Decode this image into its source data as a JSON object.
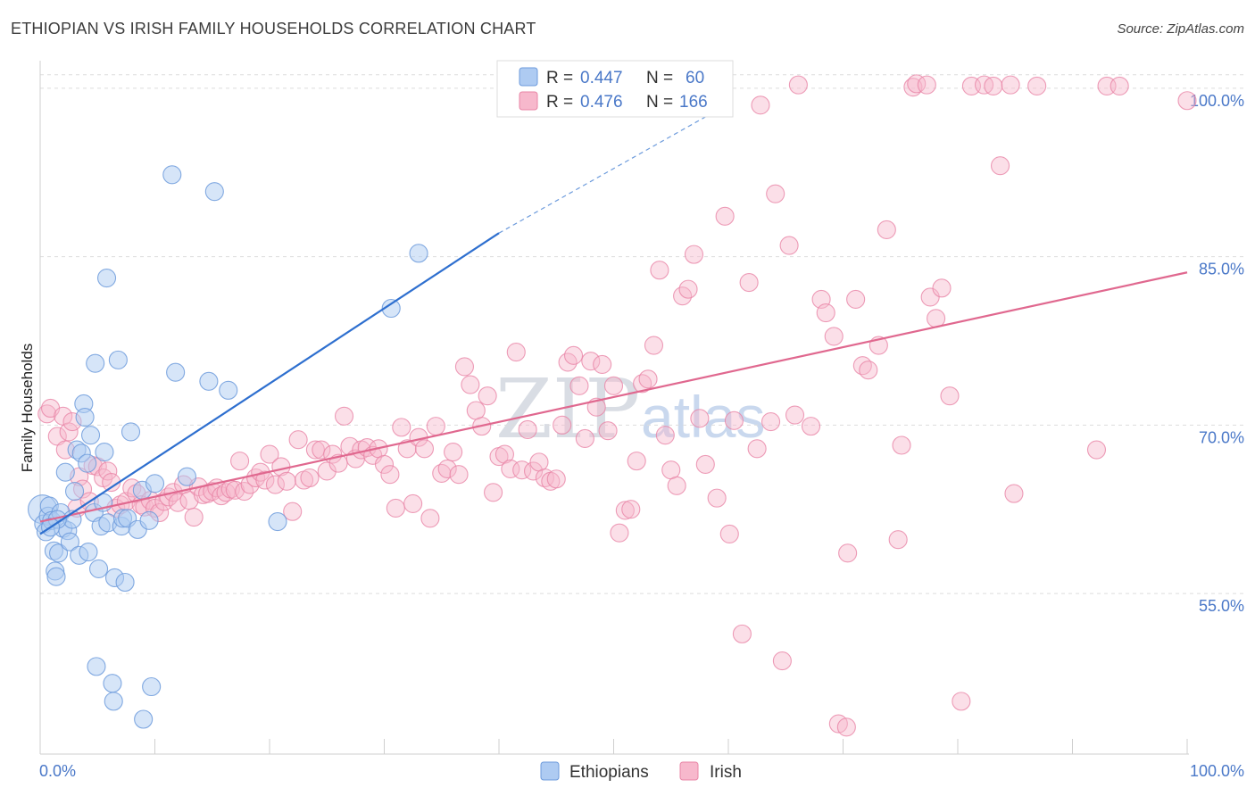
{
  "title": "ETHIOPIAN VS IRISH FAMILY HOUSEHOLDS CORRELATION CHART",
  "source": "Source: ZipAtlas.com",
  "watermark": {
    "zip": "ZIP",
    "atlas": "atlas"
  },
  "colors": {
    "ethiopians_fill": "#aecbf2",
    "ethiopians_stroke": "#6d9bdc",
    "ethiopians_line": "#2e6fcf",
    "irish_fill": "#f7b8cc",
    "irish_stroke": "#e885a6",
    "irish_line": "#e0688f",
    "tick_label": "#4a78c8",
    "grid": "#dddddd"
  },
  "legend": {
    "rows": [
      {
        "r_label": "R = ",
        "r_value": "0.447",
        "n_label": "N = ",
        "n_value": "60"
      },
      {
        "r_label": "R = ",
        "r_value": "0.476",
        "n_label": "N = ",
        "n_value": "166"
      }
    ]
  },
  "bottom_legend": [
    "Ethiopians",
    "Irish"
  ],
  "chart_data": {
    "type": "scatter",
    "title": "ETHIOPIAN VS IRISH FAMILY HOUSEHOLDS CORRELATION CHART",
    "xlabel": "",
    "ylabel": "Family Households",
    "xlim": [
      0,
      100
    ],
    "ylim": [
      40.7,
      101.9
    ],
    "x_tick_labels": [
      "0.0%",
      "100.0%"
    ],
    "y_ticks": [
      55,
      70,
      85,
      100
    ],
    "y_tick_labels": [
      "55.0%",
      "70.0%",
      "85.0%",
      "100.0%"
    ],
    "grid": true,
    "legend_position": "top-center",
    "series": [
      {
        "name": "Ethiopians",
        "R": 0.447,
        "N": 60,
        "trend": {
          "x0": 0,
          "y0": 60.3,
          "x1": 40,
          "y1": 87.1,
          "dash_to_x": 60,
          "dash_to_y": 98.6
        },
        "points": [
          [
            0.2,
            62.5
          ],
          [
            0.3,
            61.2
          ],
          [
            0.5,
            60.5
          ],
          [
            0.7,
            61.9
          ],
          [
            0.8,
            62.8
          ],
          [
            1.0,
            61.5
          ],
          [
            1.2,
            58.8
          ],
          [
            1.3,
            57.0
          ],
          [
            1.4,
            56.5
          ],
          [
            1.6,
            58.6
          ],
          [
            1.8,
            62.2
          ],
          [
            2.0,
            60.8
          ],
          [
            2.2,
            65.8
          ],
          [
            2.4,
            60.6
          ],
          [
            2.6,
            59.6
          ],
          [
            2.8,
            61.6
          ],
          [
            3.0,
            64.1
          ],
          [
            3.2,
            67.8
          ],
          [
            3.4,
            58.4
          ],
          [
            3.6,
            67.5
          ],
          [
            3.8,
            71.9
          ],
          [
            3.9,
            70.7
          ],
          [
            4.1,
            66.6
          ],
          [
            4.2,
            58.7
          ],
          [
            4.4,
            69.1
          ],
          [
            4.7,
            62.2
          ],
          [
            4.9,
            48.5
          ],
          [
            4.8,
            75.5
          ],
          [
            5.1,
            57.2
          ],
          [
            5.3,
            61.0
          ],
          [
            5.5,
            63.1
          ],
          [
            5.6,
            67.6
          ],
          [
            5.8,
            83.1
          ],
          [
            5.9,
            61.3
          ],
          [
            6.3,
            47.0
          ],
          [
            6.4,
            45.4
          ],
          [
            6.5,
            56.4
          ],
          [
            6.8,
            75.8
          ],
          [
            7.1,
            61.0
          ],
          [
            7.2,
            61.7
          ],
          [
            7.4,
            56.0
          ],
          [
            7.6,
            61.7
          ],
          [
            7.9,
            69.4
          ],
          [
            8.5,
            60.7
          ],
          [
            8.9,
            64.2
          ],
          [
            9.0,
            43.8
          ],
          [
            9.5,
            61.5
          ],
          [
            9.7,
            46.7
          ],
          [
            10.0,
            64.8
          ],
          [
            11.5,
            92.3
          ],
          [
            11.8,
            74.7
          ],
          [
            12.8,
            65.4
          ],
          [
            14.7,
            73.9
          ],
          [
            15.2,
            90.8
          ],
          [
            16.4,
            73.1
          ],
          [
            20.7,
            61.4
          ],
          [
            30.6,
            80.4
          ],
          [
            33.0,
            85.3
          ],
          [
            1.5,
            61.6
          ],
          [
            0.9,
            60.9
          ]
        ]
      },
      {
        "name": "Irish",
        "R": 0.476,
        "N": 166,
        "trend": {
          "x0": 0,
          "y0": 61.4,
          "x1": 100,
          "y1": 83.6
        },
        "points": [
          [
            0.6,
            71.0
          ],
          [
            0.9,
            71.5
          ],
          [
            1.5,
            69.0
          ],
          [
            2.0,
            70.8
          ],
          [
            2.2,
            67.8
          ],
          [
            2.5,
            69.4
          ],
          [
            2.8,
            70.3
          ],
          [
            3.2,
            62.6
          ],
          [
            3.4,
            65.4
          ],
          [
            3.7,
            64.3
          ],
          [
            4.3,
            63.2
          ],
          [
            4.6,
            66.4
          ],
          [
            5.0,
            66.3
          ],
          [
            5.5,
            65.3
          ],
          [
            5.9,
            65.9
          ],
          [
            6.2,
            64.9
          ],
          [
            6.6,
            62.6
          ],
          [
            7.0,
            62.9
          ],
          [
            7.5,
            63.2
          ],
          [
            8.0,
            64.4
          ],
          [
            8.4,
            63.9
          ],
          [
            8.8,
            62.9
          ],
          [
            9.1,
            62.7
          ],
          [
            9.6,
            63.3
          ],
          [
            10.0,
            62.6
          ],
          [
            10.4,
            62.2
          ],
          [
            10.8,
            63.2
          ],
          [
            11.2,
            63.6
          ],
          [
            11.6,
            64.0
          ],
          [
            12.0,
            63.1
          ],
          [
            12.5,
            64.7
          ],
          [
            13.0,
            63.3
          ],
          [
            13.4,
            61.8
          ],
          [
            13.8,
            64.5
          ],
          [
            14.2,
            63.8
          ],
          [
            14.6,
            63.9
          ],
          [
            15.0,
            64.1
          ],
          [
            15.4,
            64.4
          ],
          [
            15.8,
            63.7
          ],
          [
            16.2,
            64.0
          ],
          [
            16.6,
            64.3
          ],
          [
            17.0,
            64.2
          ],
          [
            17.4,
            66.8
          ],
          [
            17.8,
            64.1
          ],
          [
            18.3,
            64.7
          ],
          [
            18.8,
            65.3
          ],
          [
            19.2,
            65.8
          ],
          [
            19.6,
            65.1
          ],
          [
            20.0,
            67.4
          ],
          [
            20.5,
            64.7
          ],
          [
            21.0,
            66.3
          ],
          [
            21.5,
            65.0
          ],
          [
            22.0,
            62.3
          ],
          [
            22.5,
            68.7
          ],
          [
            23.0,
            65.1
          ],
          [
            23.5,
            65.3
          ],
          [
            24.0,
            67.8
          ],
          [
            24.5,
            67.8
          ],
          [
            25.0,
            65.9
          ],
          [
            25.5,
            67.4
          ],
          [
            26.0,
            66.6
          ],
          [
            26.5,
            70.8
          ],
          [
            27.0,
            68.1
          ],
          [
            27.5,
            67.0
          ],
          [
            28.0,
            67.8
          ],
          [
            28.5,
            68.0
          ],
          [
            29.0,
            67.3
          ],
          [
            29.5,
            67.9
          ],
          [
            30.0,
            66.5
          ],
          [
            30.5,
            65.6
          ],
          [
            31.0,
            62.6
          ],
          [
            31.5,
            69.8
          ],
          [
            32.0,
            67.9
          ],
          [
            32.5,
            63.0
          ],
          [
            33.0,
            68.9
          ],
          [
            33.5,
            67.9
          ],
          [
            34.0,
            61.7
          ],
          [
            34.5,
            69.9
          ],
          [
            35.0,
            65.7
          ],
          [
            35.5,
            66.1
          ],
          [
            36.0,
            67.6
          ],
          [
            36.5,
            65.6
          ],
          [
            37.0,
            75.2
          ],
          [
            37.5,
            73.6
          ],
          [
            38.0,
            71.3
          ],
          [
            38.5,
            69.9
          ],
          [
            39.0,
            72.6
          ],
          [
            39.5,
            64.0
          ],
          [
            40.0,
            67.2
          ],
          [
            40.5,
            67.4
          ],
          [
            41.0,
            66.1
          ],
          [
            41.5,
            76.5
          ],
          [
            42.0,
            66.0
          ],
          [
            42.5,
            69.6
          ],
          [
            43.0,
            65.9
          ],
          [
            43.5,
            66.7
          ],
          [
            44.0,
            65.3
          ],
          [
            44.5,
            65.0
          ],
          [
            45.0,
            65.2
          ],
          [
            45.5,
            70.0
          ],
          [
            46.0,
            75.6
          ],
          [
            46.5,
            76.2
          ],
          [
            47.0,
            73.5
          ],
          [
            47.5,
            68.8
          ],
          [
            48.0,
            75.7
          ],
          [
            48.5,
            71.6
          ],
          [
            49.0,
            75.4
          ],
          [
            49.5,
            69.5
          ],
          [
            50.0,
            73.5
          ],
          [
            50.5,
            60.4
          ],
          [
            51.0,
            62.4
          ],
          [
            51.5,
            62.5
          ],
          [
            52.0,
            66.8
          ],
          [
            52.5,
            73.7
          ],
          [
            53.0,
            74.1
          ],
          [
            53.5,
            77.1
          ],
          [
            54.0,
            83.8
          ],
          [
            54.5,
            69.1
          ],
          [
            55.0,
            66.0
          ],
          [
            55.5,
            64.6
          ],
          [
            56.0,
            81.5
          ],
          [
            56.5,
            82.1
          ],
          [
            57.0,
            85.2
          ],
          [
            57.5,
            70.6
          ],
          [
            58.0,
            66.5
          ],
          [
            59.0,
            63.5
          ],
          [
            59.7,
            88.6
          ],
          [
            60.1,
            60.3
          ],
          [
            60.5,
            70.4
          ],
          [
            61.2,
            51.4
          ],
          [
            61.8,
            82.7
          ],
          [
            62.5,
            67.9
          ],
          [
            62.8,
            98.5
          ],
          [
            63.7,
            70.3
          ],
          [
            64.1,
            90.6
          ],
          [
            64.7,
            49.0
          ],
          [
            65.3,
            86.0
          ],
          [
            65.8,
            70.9
          ],
          [
            66.1,
            100.3
          ],
          [
            67.2,
            69.9
          ],
          [
            68.1,
            81.2
          ],
          [
            68.5,
            80.0
          ],
          [
            69.2,
            77.9
          ],
          [
            69.6,
            43.4
          ],
          [
            70.3,
            43.1
          ],
          [
            70.4,
            58.6
          ],
          [
            71.1,
            81.2
          ],
          [
            71.7,
            75.3
          ],
          [
            72.2,
            74.9
          ],
          [
            73.1,
            77.1
          ],
          [
            73.8,
            87.4
          ],
          [
            74.8,
            59.8
          ],
          [
            75.1,
            68.2
          ],
          [
            76.1,
            100.1
          ],
          [
            76.4,
            100.4
          ],
          [
            77.3,
            100.3
          ],
          [
            77.6,
            81.4
          ],
          [
            78.1,
            79.5
          ],
          [
            78.6,
            82.2
          ],
          [
            79.3,
            72.6
          ],
          [
            80.3,
            45.4
          ],
          [
            81.2,
            100.2
          ],
          [
            82.3,
            100.3
          ],
          [
            83.1,
            100.2
          ],
          [
            83.7,
            93.1
          ],
          [
            84.6,
            100.3
          ],
          [
            84.9,
            63.9
          ],
          [
            86.9,
            100.2
          ],
          [
            92.1,
            67.8
          ],
          [
            93.0,
            100.2
          ],
          [
            94.1,
            100.2
          ],
          [
            100.0,
            98.9
          ]
        ]
      }
    ]
  }
}
